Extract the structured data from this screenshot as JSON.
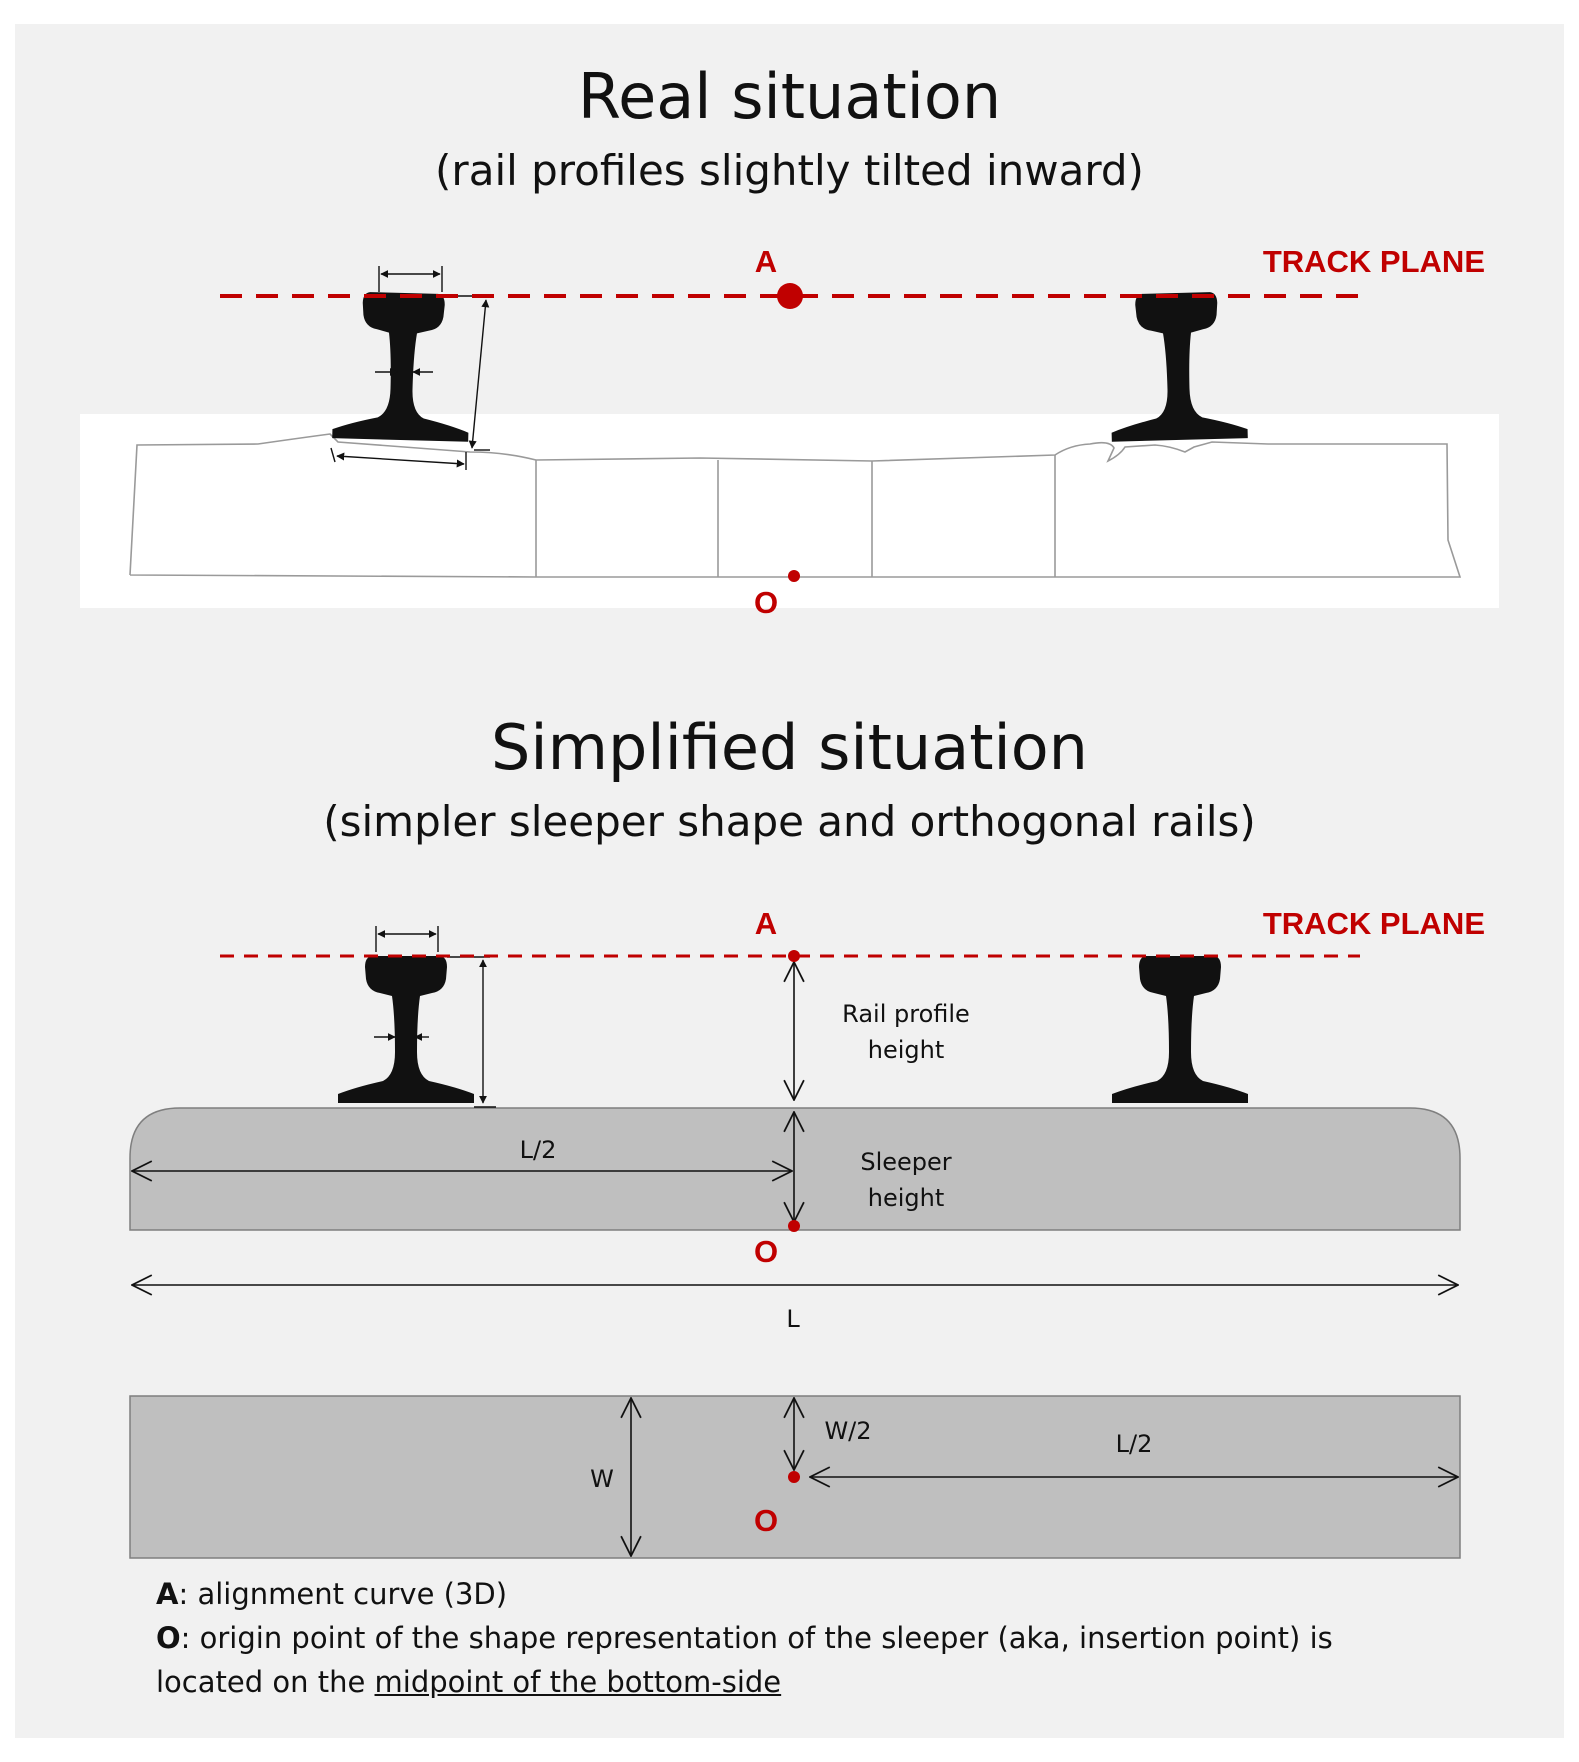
{
  "titles": {
    "real": "Real situation",
    "real_sub": "(rail profiles slightly tilted inward)",
    "simplified": "Simplified situation",
    "simplified_sub": "(simpler sleeper shape and orthogonal rails)"
  },
  "labels": {
    "A": "A",
    "O": "O",
    "track_plane": "TRACK PLANE",
    "rail_profile_height_1": "Rail profile",
    "rail_profile_height_2": "height",
    "sleeper_height_1": "Sleeper",
    "sleeper_height_2": "height",
    "half_length": "L/2",
    "length": "L",
    "width": "W",
    "half_width": "W/2"
  },
  "legend": {
    "a_key": "A",
    "a_text": ": alignment curve (3D)",
    "o_key": "O",
    "o_text": ": origin point of the shape representation of the sleeper (aka, insertion point) is",
    "o_text2": "located on the ",
    "o_underlined": "midpoint of the bottom-side"
  },
  "colors": {
    "accent_red": "#c00000",
    "sleeper_gray": "#bfbfbf",
    "background": "#f1f1f1"
  }
}
